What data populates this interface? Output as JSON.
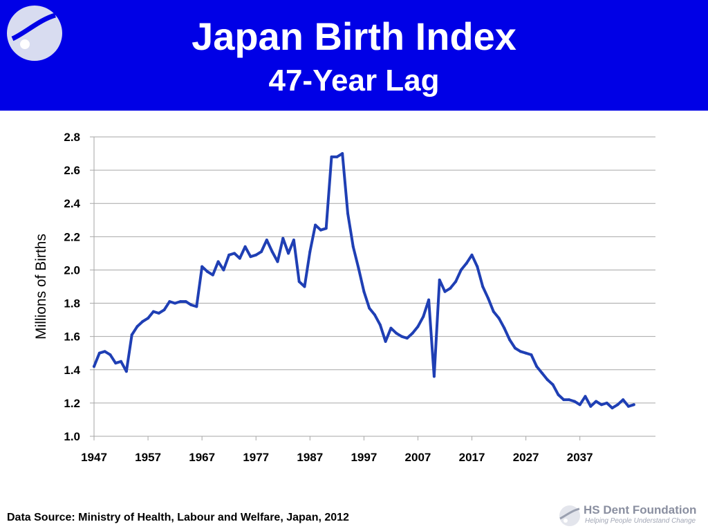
{
  "header": {
    "title": "Japan Birth Index",
    "subtitle": "47-Year Lag",
    "logo_icon": "foundation-logo-icon"
  },
  "footer": {
    "source": "Data Source: Ministry of Health, Labour and Welfare, Japan, 2012",
    "logo_name": "HS Dent Foundation",
    "logo_tagline": "Helping People Understand Change"
  },
  "colors": {
    "header_bg": "#0000e6",
    "line": "#1f3fb4",
    "grid": "#a6a6a6",
    "text": "#000000"
  },
  "chart_data": {
    "type": "line",
    "title": "",
    "xlabel": "",
    "ylabel": "Millions of Births",
    "xlim": [
      1947,
      2051
    ],
    "ylim": [
      1.0,
      2.8
    ],
    "y_ticks": [
      "1.0",
      "1.2",
      "1.4",
      "1.6",
      "1.8",
      "2.0",
      "2.2",
      "2.4",
      "2.6",
      "2.8"
    ],
    "x_ticks": [
      "1947",
      "1957",
      "1967",
      "1977",
      "1987",
      "1997",
      "2007",
      "2017",
      "2027",
      "2037"
    ],
    "grid": "horizontal",
    "legend": "none",
    "series": [
      {
        "x": [
          1947,
          1948,
          1949,
          1950,
          1951,
          1952,
          1953,
          1954,
          1955,
          1956,
          1957,
          1958,
          1959,
          1960,
          1961,
          1962,
          1963,
          1964,
          1965,
          1966,
          1967,
          1968,
          1969,
          1970,
          1971,
          1972,
          1973,
          1974,
          1975,
          1976,
          1977,
          1978,
          1979,
          1980,
          1981,
          1982,
          1983,
          1984,
          1985,
          1986,
          1987,
          1988,
          1989,
          1990,
          1991,
          1992,
          1993,
          1994,
          1995,
          1996,
          1997,
          1998,
          1999,
          2000,
          2001,
          2002,
          2003,
          2004,
          2005,
          2006,
          2007,
          2008,
          2009,
          2010,
          2011,
          2012,
          2013,
          2014,
          2015,
          2016,
          2017,
          2018,
          2019,
          2020,
          2021,
          2022,
          2023,
          2024,
          2025,
          2026,
          2027,
          2028,
          2029,
          2030,
          2031,
          2032,
          2033,
          2034,
          2035,
          2036,
          2037,
          2038,
          2039,
          2040,
          2041,
          2042,
          2043,
          2044,
          2045,
          2046,
          2047
        ],
        "values": [
          1.42,
          1.5,
          1.51,
          1.49,
          1.44,
          1.45,
          1.39,
          1.61,
          1.66,
          1.69,
          1.71,
          1.75,
          1.74,
          1.76,
          1.81,
          1.8,
          1.81,
          1.81,
          1.79,
          1.78,
          2.02,
          1.99,
          1.97,
          2.05,
          2.0,
          2.09,
          2.1,
          2.07,
          2.14,
          2.08,
          2.09,
          2.11,
          2.18,
          2.11,
          2.05,
          2.19,
          2.1,
          2.18,
          1.93,
          1.9,
          2.11,
          2.27,
          2.24,
          2.25,
          2.68,
          2.68,
          2.7,
          2.34,
          2.14,
          2.01,
          1.87,
          1.77,
          1.73,
          1.67,
          1.57,
          1.65,
          1.62,
          1.6,
          1.59,
          1.62,
          1.66,
          1.72,
          1.82,
          1.36,
          1.94,
          1.87,
          1.89,
          1.93,
          2.0,
          2.04,
          2.09,
          2.02,
          1.9,
          1.83,
          1.75,
          1.71,
          1.65,
          1.58,
          1.53,
          1.51,
          1.5,
          1.49,
          1.42,
          1.38,
          1.34,
          1.31,
          1.25,
          1.22,
          1.22,
          1.21,
          1.19,
          1.24,
          1.18,
          1.21,
          1.19,
          1.2,
          1.17,
          1.19,
          1.22,
          1.18,
          1.19
        ]
      }
    ]
  }
}
